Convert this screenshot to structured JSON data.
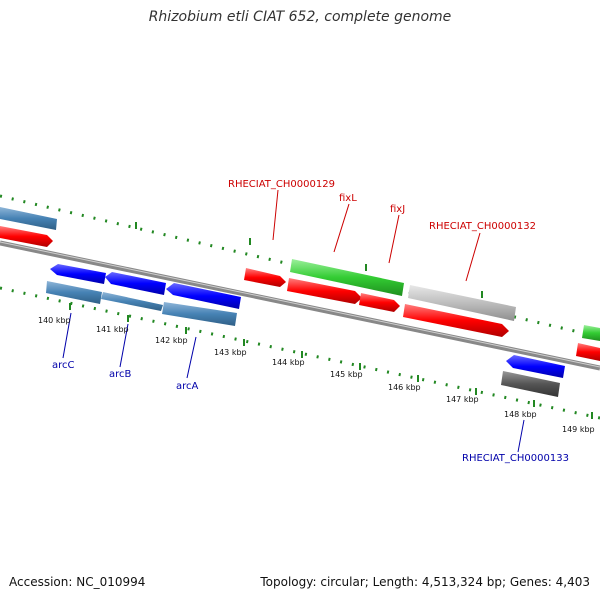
{
  "title": "Rhizobium etli CIAT 652, complete genome",
  "accession": "Accession: NC_010994",
  "topology": "Topology: circular; Length: 4,513,324 bp; Genes: 4,403",
  "colors": {
    "cds_forward": "#ff1a1a",
    "cds_reverse": "#1a1aff",
    "rna_blue": "#4682b4",
    "green_gene": "#33cc33",
    "grey_gene": "#b8b8b8",
    "dark_grey_gene": "#555555",
    "backbone": "#888888",
    "tick": "#228822",
    "label_red": "#cc0000",
    "label_blue": "#0000aa"
  },
  "tick_labels": [
    "140 kbp",
    "141 kbp",
    "142 kbp",
    "143 kbp",
    "144 kbp",
    "145 kbp",
    "146 kbp",
    "147 kbp",
    "148 kbp",
    "149 kbp"
  ],
  "gene_labels_top": [
    "RHECIAT_CH0000129",
    "fixL",
    "fixJ",
    "RHECIAT_CH0000132"
  ],
  "gene_labels_bottom": [
    "arcC",
    "arcB",
    "arcA",
    "RHECIAT_CH0000133"
  ]
}
